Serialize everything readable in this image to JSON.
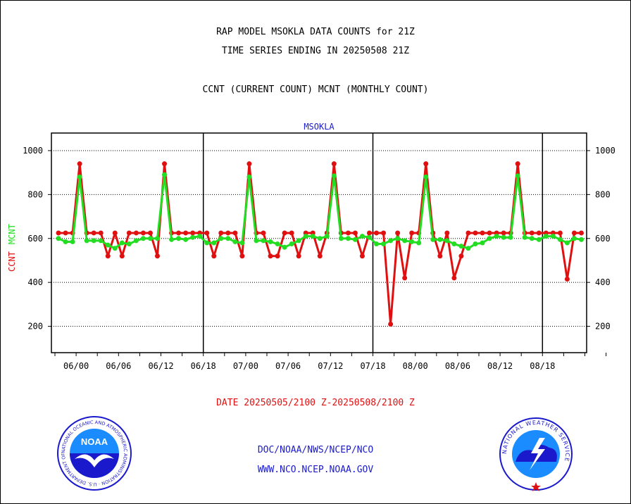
{
  "header": {
    "line1": "RAP MODEL MSOKLA DATA COUNTS for 21Z",
    "line2": "TIME SERIES ENDING IN 20250508 21Z",
    "line3": "CCNT (CURRENT COUNT) MCNT (MONTHLY COUNT)"
  },
  "footer": {
    "date_range": "DATE 20250505/2100 Z-20250508/2100 Z",
    "credit1": "DOC/NOAA/NWS/NCEP/NCO",
    "credit2": "WWW.NCO.NCEP.NOAA.GOV"
  },
  "logos": {
    "noaa_label": "NOAA",
    "noaa_ring": "NATIONAL OCEANIC AND ATMOSPHERIC ADMINISTRATION · U.S. DEPARTMENT OF COMMERCE",
    "nws_ring": "NATIONAL WEATHER SERVICE"
  },
  "colors": {
    "ccnt": "#e01010",
    "mcnt": "#22dd22",
    "label_blue": "#1a1acc"
  },
  "chart_data": {
    "type": "line",
    "title": "MSOKLA",
    "ylabel_left": "CCNT",
    "ylabel_right": "MCNT",
    "ylim": [
      80,
      1080
    ],
    "yticks": [
      200,
      400,
      600,
      800,
      1000
    ],
    "xticks": [
      "06/00",
      "06/06",
      "06/12",
      "06/18",
      "07/00",
      "07/06",
      "07/12",
      "07/18",
      "08/00",
      "08/06",
      "08/12",
      "08/18"
    ],
    "x_hours": [
      -3,
      0,
      3,
      6,
      9,
      12,
      15,
      18,
      21,
      24,
      27,
      30,
      33,
      36,
      39,
      42,
      45,
      48,
      51,
      54,
      57,
      60,
      63,
      66,
      69,
      72,
      75
    ],
    "day_boundaries": [
      18,
      42,
      66
    ],
    "grid": "horizontal dotted",
    "series": [
      {
        "name": "CCNT",
        "color": "#e01010",
        "x": [
          -2.5,
          -1.5,
          -0.5,
          0.5,
          1.5,
          2.5,
          3.5,
          4.5,
          5.5,
          6.5,
          7.5,
          8.5,
          9.5,
          10.5,
          11.5,
          12.5,
          13.5,
          14.5,
          15.5,
          16.5,
          17.5,
          18.5,
          19.5,
          20.5,
          21.5,
          22.5,
          23.5,
          24.5,
          25.5,
          26.5,
          27.5,
          28.5,
          29.5,
          30.5,
          31.5,
          32.5,
          33.5,
          34.5,
          35.5,
          36.5,
          37.5,
          38.5,
          39.5,
          40.5,
          41.5,
          42.5,
          43.5,
          44.5,
          45.5,
          46.5,
          47.5,
          48.5,
          49.5,
          50.5,
          51.5,
          52.5,
          53.5,
          54.5,
          55.5,
          56.5,
          57.5,
          58.5,
          59.5,
          60.5,
          61.5,
          62.5,
          63.5,
          64.5,
          65.5,
          66.5,
          67.5,
          68.5,
          69.5,
          70.5,
          71.5
        ],
        "values": [
          625,
          625,
          625,
          940,
          625,
          625,
          625,
          520,
          625,
          520,
          625,
          625,
          625,
          625,
          520,
          940,
          625,
          625,
          625,
          625,
          625,
          625,
          520,
          625,
          625,
          625,
          520,
          940,
          625,
          625,
          520,
          520,
          625,
          625,
          520,
          625,
          625,
          520,
          625,
          940,
          625,
          625,
          625,
          520,
          625,
          625,
          625,
          210,
          625,
          420,
          625,
          625,
          940,
          625,
          520,
          625,
          420,
          520,
          625,
          625,
          625,
          625,
          625,
          625,
          625,
          940,
          625,
          625,
          625,
          625,
          625,
          625,
          415,
          625,
          625
        ]
      },
      {
        "name": "MCNT",
        "color": "#22dd22",
        "x": [
          -2.5,
          -1.5,
          -0.5,
          0.5,
          1.5,
          2.5,
          3.5,
          4.5,
          5.5,
          6.5,
          7.5,
          8.5,
          9.5,
          10.5,
          11.5,
          12.5,
          13.5,
          14.5,
          15.5,
          16.5,
          17.5,
          18.5,
          19.5,
          20.5,
          21.5,
          22.5,
          23.5,
          24.5,
          25.5,
          26.5,
          27.5,
          28.5,
          29.5,
          30.5,
          31.5,
          32.5,
          33.5,
          34.5,
          35.5,
          36.5,
          37.5,
          38.5,
          39.5,
          40.5,
          41.5,
          42.5,
          43.5,
          44.5,
          45.5,
          46.5,
          47.5,
          48.5,
          49.5,
          50.5,
          51.5,
          52.5,
          53.5,
          54.5,
          55.5,
          56.5,
          57.5,
          58.5,
          59.5,
          60.5,
          61.5,
          62.5,
          63.5,
          64.5,
          65.5,
          66.5,
          67.5,
          68.5,
          69.5,
          70.5,
          71.5
        ],
        "values": [
          600,
          585,
          585,
          880,
          590,
          590,
          590,
          570,
          555,
          580,
          575,
          590,
          600,
          600,
          600,
          890,
          595,
          600,
          595,
          605,
          610,
          580,
          580,
          600,
          600,
          585,
          580,
          880,
          590,
          590,
          585,
          575,
          560,
          575,
          590,
          610,
          610,
          600,
          610,
          885,
          600,
          600,
          595,
          610,
          605,
          575,
          575,
          590,
          600,
          590,
          585,
          580,
          880,
          595,
          595,
          590,
          575,
          565,
          555,
          575,
          580,
          600,
          610,
          605,
          605,
          885,
          605,
          600,
          595,
          610,
          610,
          595,
          580,
          600,
          595
        ]
      }
    ]
  }
}
